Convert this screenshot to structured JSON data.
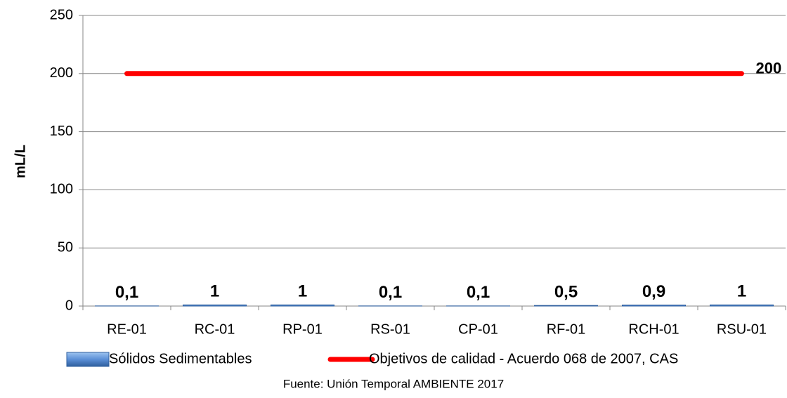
{
  "chart_data": {
    "type": "bar_line",
    "y_label": "mL/L",
    "source": "Fuente: Unión Temporal AMBIENTE 2017",
    "categories": [
      "RE-01",
      "RC-01",
      "RP-01",
      "RS-01",
      "CP-01",
      "RF-01",
      "RCH-01",
      "RSU-01"
    ],
    "series": [
      {
        "name": "Sólidos Sedimentables",
        "type": "bar",
        "color": "#5b8fd6",
        "values": [
          0.1,
          1,
          1,
          0.1,
          0.1,
          0.5,
          0.9,
          1
        ],
        "value_labels": [
          "0,1",
          "1",
          "1",
          "0,1",
          "0,1",
          "0,5",
          "0,9",
          "1"
        ]
      },
      {
        "name": "Objetivos de calidad - Acuerdo 068 de 2007, CAS",
        "type": "line",
        "color": "#ff0000",
        "values": [
          200,
          200,
          200,
          200,
          200,
          200,
          200,
          200
        ]
      }
    ],
    "ylim": [
      0,
      250
    ],
    "yticks": [
      0,
      50,
      100,
      150,
      200,
      250
    ],
    "grid": true
  }
}
